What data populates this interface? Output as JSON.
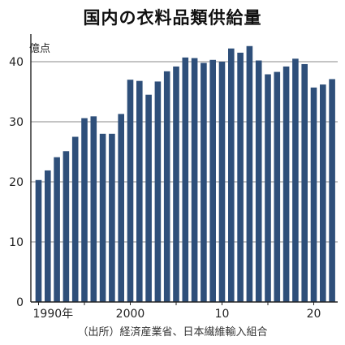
{
  "chart_data": {
    "type": "bar",
    "title": "国内の衣料品類供給量",
    "unit_label": "億点",
    "source": "（出所）経済産業省、日本繊維輸入組合",
    "x": [
      1990,
      1991,
      1992,
      1993,
      1994,
      1995,
      1996,
      1997,
      1998,
      1999,
      2000,
      2001,
      2002,
      2003,
      2004,
      2005,
      2006,
      2007,
      2008,
      2009,
      2010,
      2011,
      2012,
      2013,
      2014,
      2015,
      2016,
      2017,
      2018,
      2019,
      2020,
      2021,
      2022
    ],
    "values": [
      20.3,
      21.9,
      24.1,
      25.1,
      27.5,
      30.6,
      30.9,
      28.0,
      28.0,
      31.3,
      37.0,
      36.8,
      34.5,
      36.7,
      38.4,
      39.2,
      40.7,
      40.6,
      39.8,
      40.3,
      40.0,
      42.2,
      41.5,
      42.6,
      40.2,
      37.9,
      38.3,
      39.2,
      40.5,
      39.6,
      35.7,
      36.2,
      37.1
    ],
    "x_tick_labels": [
      {
        "x": 1990,
        "label": "1990年"
      },
      {
        "x": 2000,
        "label": "2000"
      },
      {
        "x": 2010,
        "label": "10"
      },
      {
        "x": 2020,
        "label": "20"
      }
    ],
    "y_ticks": [
      0,
      10,
      20,
      30,
      40
    ],
    "ylim": [
      0,
      45
    ],
    "bar_color": "#2e4f7a",
    "grid": "horizontal"
  }
}
